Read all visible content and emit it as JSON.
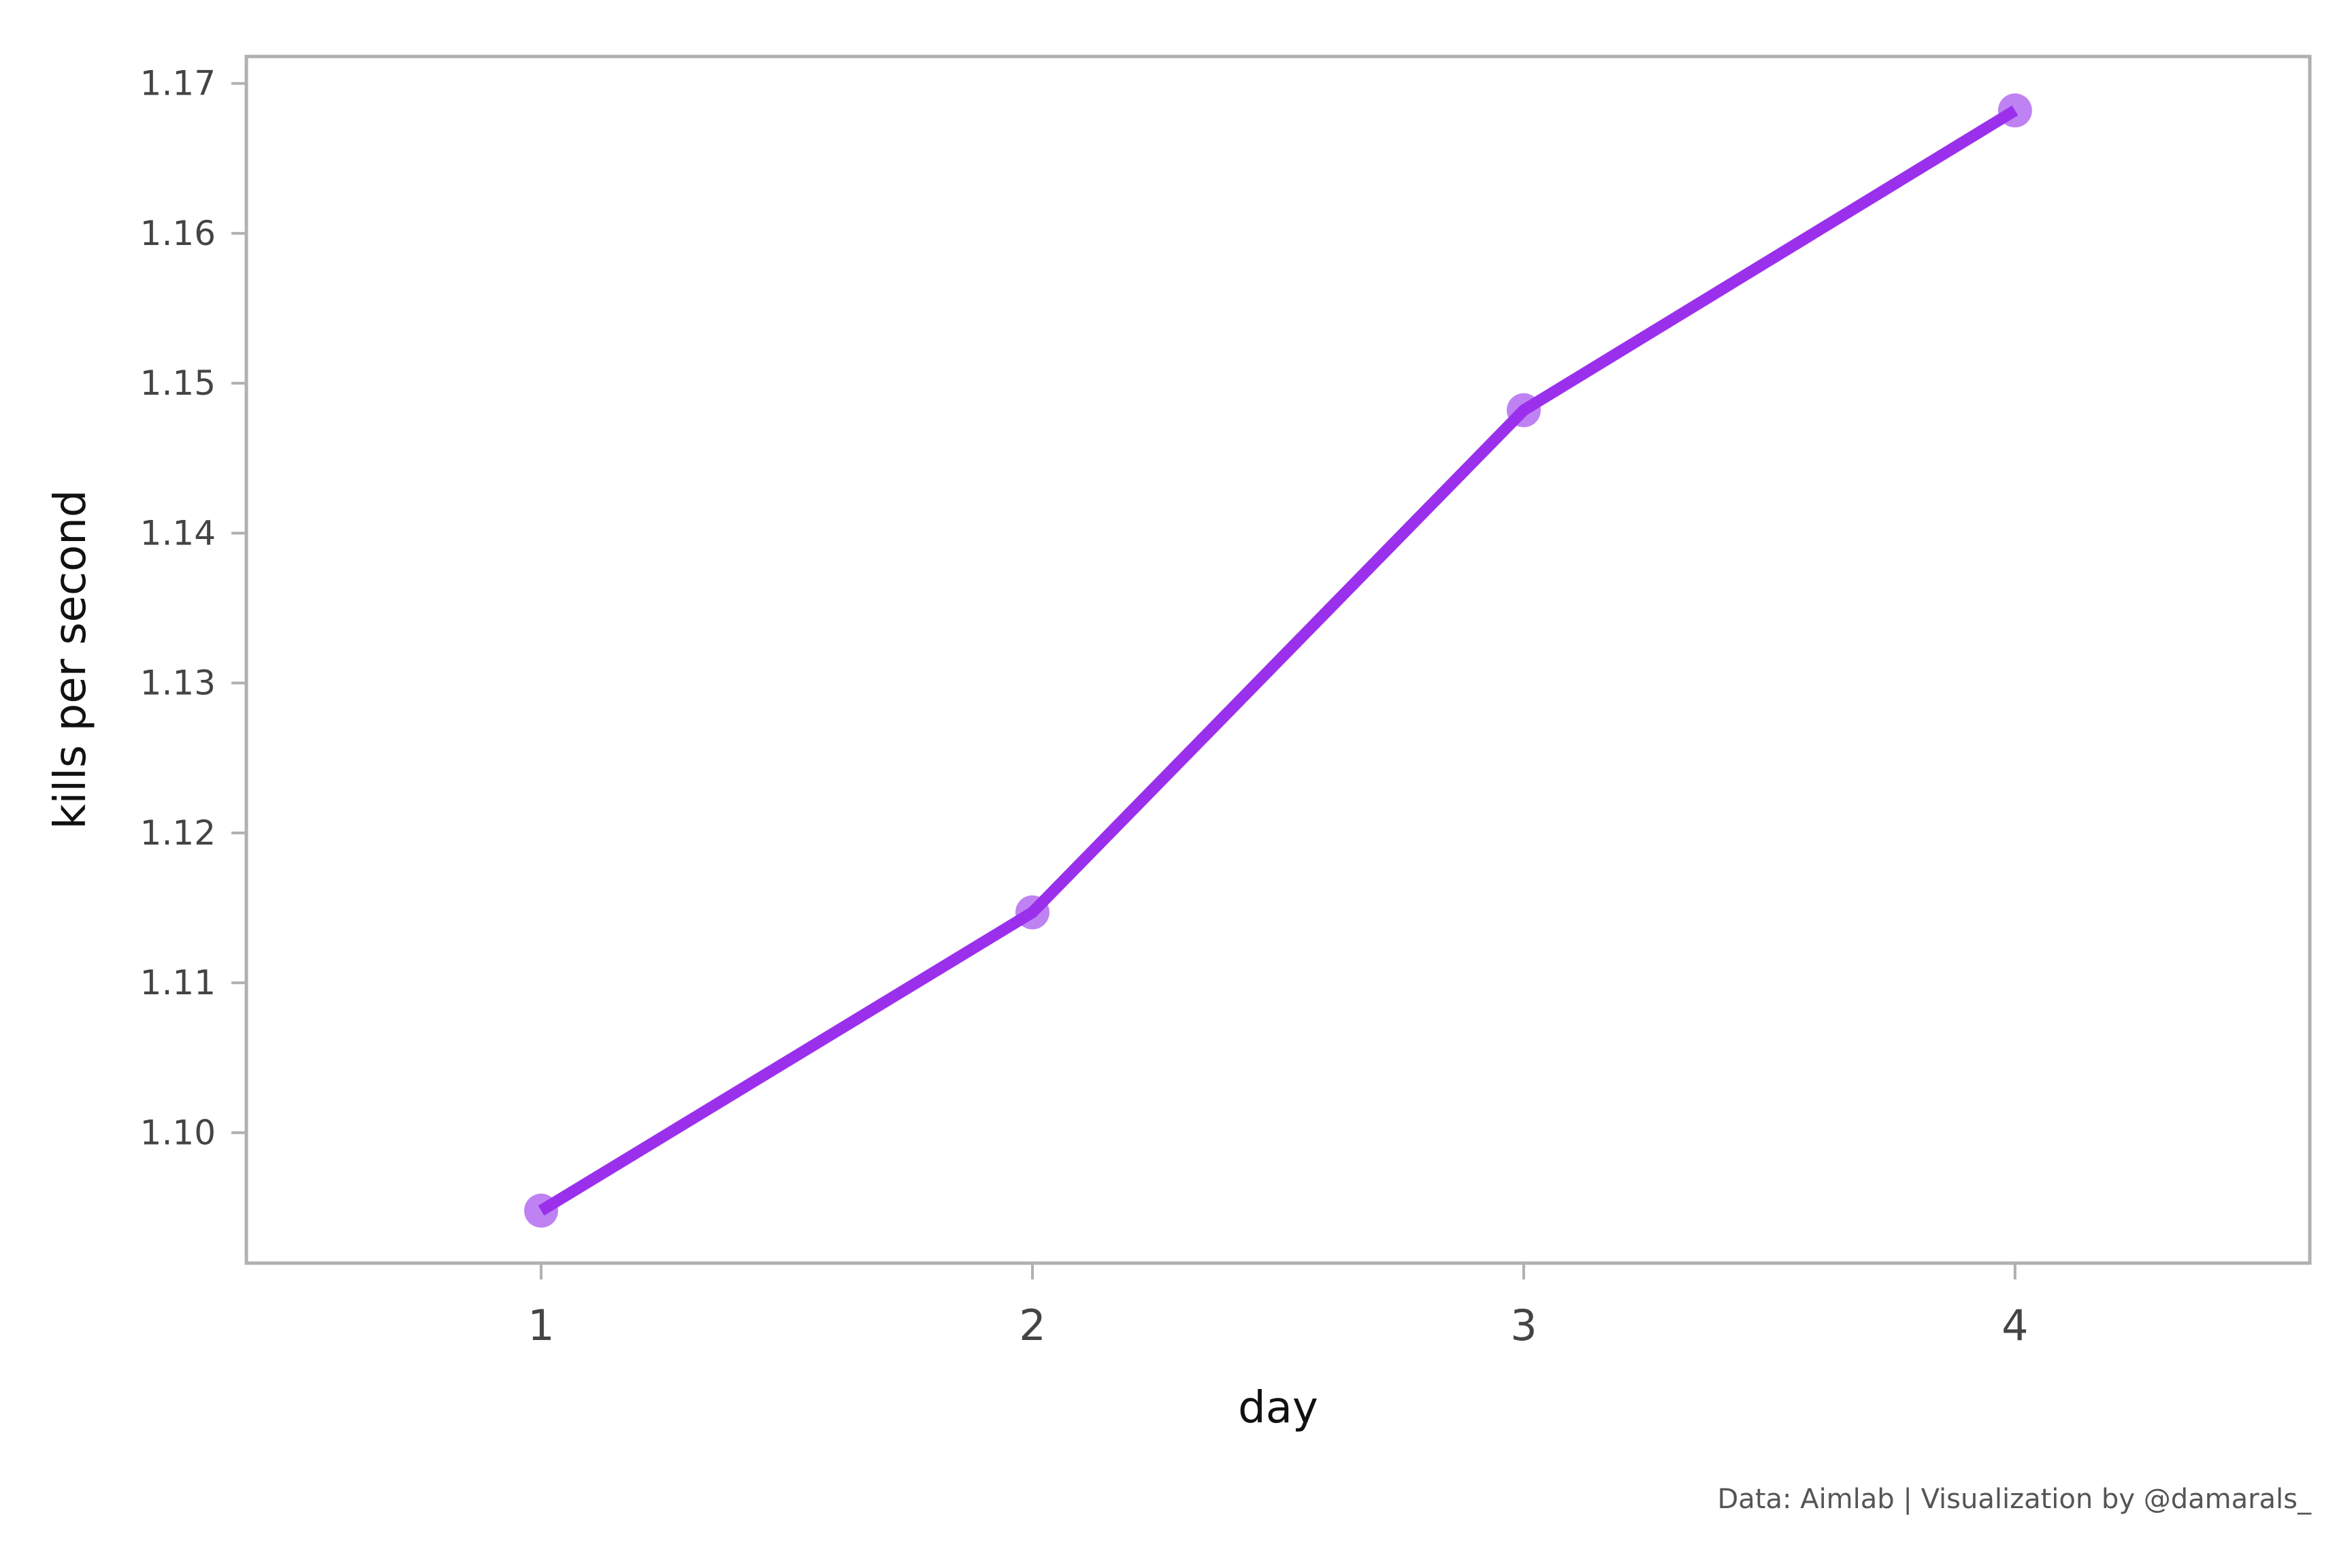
{
  "chart_data": {
    "type": "line",
    "title": "",
    "xlabel": "day",
    "ylabel": "kills per second",
    "x": [
      1,
      2,
      3,
      4
    ],
    "series": [
      {
        "name": "kills per second",
        "values": [
          1.0948,
          1.1147,
          1.1482,
          1.1682
        ]
      }
    ],
    "x_ticks": [
      "1",
      "2",
      "3",
      "4"
    ],
    "y_ticks": [
      "1.10",
      "1.11",
      "1.12",
      "1.13",
      "1.14",
      "1.15",
      "1.16",
      "1.17"
    ],
    "xlim": [
      0.4,
      4.6
    ],
    "ylim": [
      1.0913,
      1.1718
    ],
    "grid": false,
    "colors": {
      "line": "#9b30ec",
      "marker": "#b36cf0",
      "frame": "#b0b0b0"
    }
  },
  "caption": "Data: Aimlab | Visualization by @damarals_"
}
